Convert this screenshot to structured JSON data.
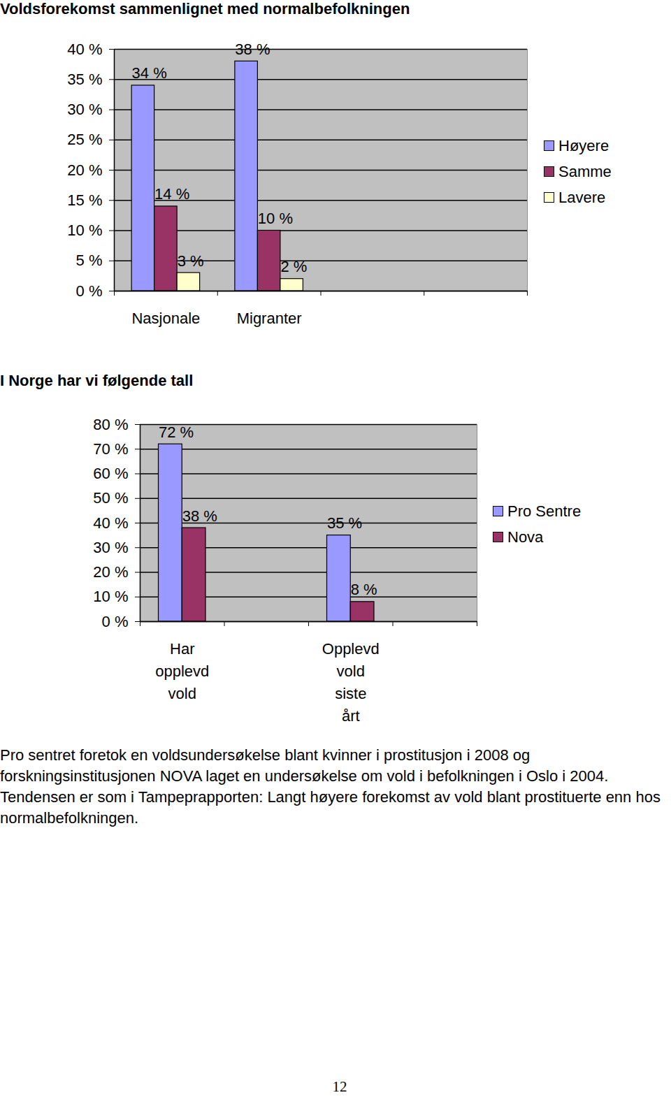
{
  "chart_data": [
    {
      "type": "bar",
      "title": "Voldsforekomst sammenlignet med normalbefolkningen",
      "categories": [
        "Nasjonale",
        "Migranter",
        null,
        null
      ],
      "series": [
        {
          "name": "Høyere",
          "color": "#9999ff",
          "values": [
            34,
            38,
            null,
            null
          ],
          "value_labels": [
            "34 %",
            "38 %",
            null,
            null
          ]
        },
        {
          "name": "Samme",
          "color": "#993366",
          "values": [
            14,
            10,
            null,
            null
          ],
          "value_labels": [
            "14 %",
            "10 %",
            null,
            null
          ]
        },
        {
          "name": "Lavere",
          "color": "#ffffcc",
          "values": [
            3,
            2,
            null,
            null
          ],
          "value_labels": [
            "3 %",
            "2 %",
            null,
            null
          ]
        }
      ],
      "ylim": [
        0,
        40
      ],
      "yticks": [
        {
          "value": 0,
          "label": "0 %"
        },
        {
          "value": 5,
          "label": "5 %"
        },
        {
          "value": 10,
          "label": "10 %"
        },
        {
          "value": 15,
          "label": "15 %"
        },
        {
          "value": 20,
          "label": "20 %"
        },
        {
          "value": 25,
          "label": "25 %"
        },
        {
          "value": 30,
          "label": "30 %"
        },
        {
          "value": 35,
          "label": "35 %"
        },
        {
          "value": 40,
          "label": "40 %"
        }
      ],
      "grid": true,
      "legend": "right",
      "data_labels": true
    },
    {
      "type": "bar",
      "title": "I Norge har vi følgende tall",
      "categories": [
        "Har opplevd vold",
        null,
        "Opplevd vold siste årt",
        null
      ],
      "series": [
        {
          "name": "Pro Sentre",
          "color": "#9999ff",
          "values": [
            72,
            null,
            35,
            null
          ],
          "value_labels": [
            "72 %",
            null,
            "35 %",
            null
          ]
        },
        {
          "name": "Nova",
          "color": "#993366",
          "values": [
            38,
            null,
            8,
            null
          ],
          "value_labels": [
            "38 %",
            null,
            "8 %",
            null
          ]
        }
      ],
      "ylim": [
        0,
        80
      ],
      "yticks": [
        {
          "value": 0,
          "label": "0 %"
        },
        {
          "value": 10,
          "label": "10 %"
        },
        {
          "value": 20,
          "label": "20 %"
        },
        {
          "value": 30,
          "label": "30 %"
        },
        {
          "value": 40,
          "label": "40 %"
        },
        {
          "value": 50,
          "label": "50 %"
        },
        {
          "value": 60,
          "label": "60 %"
        },
        {
          "value": 70,
          "label": "70 %"
        },
        {
          "value": 80,
          "label": "80 %"
        }
      ],
      "grid": true,
      "legend": "right",
      "data_labels": true
    }
  ],
  "text": "Pro sentret foretok en voldsundersøkelse blant kvinner i prostitusjon i 2008 og forskningsinstitusjonen NOVA laget en undersøkelse om vold i befolkningen i Oslo i 2004. Tendensen er som i Tampeprapporten: Langt høyere forekomst av vold blant prostituerte enn hos normalbefolkningen.",
  "page_number": "12"
}
